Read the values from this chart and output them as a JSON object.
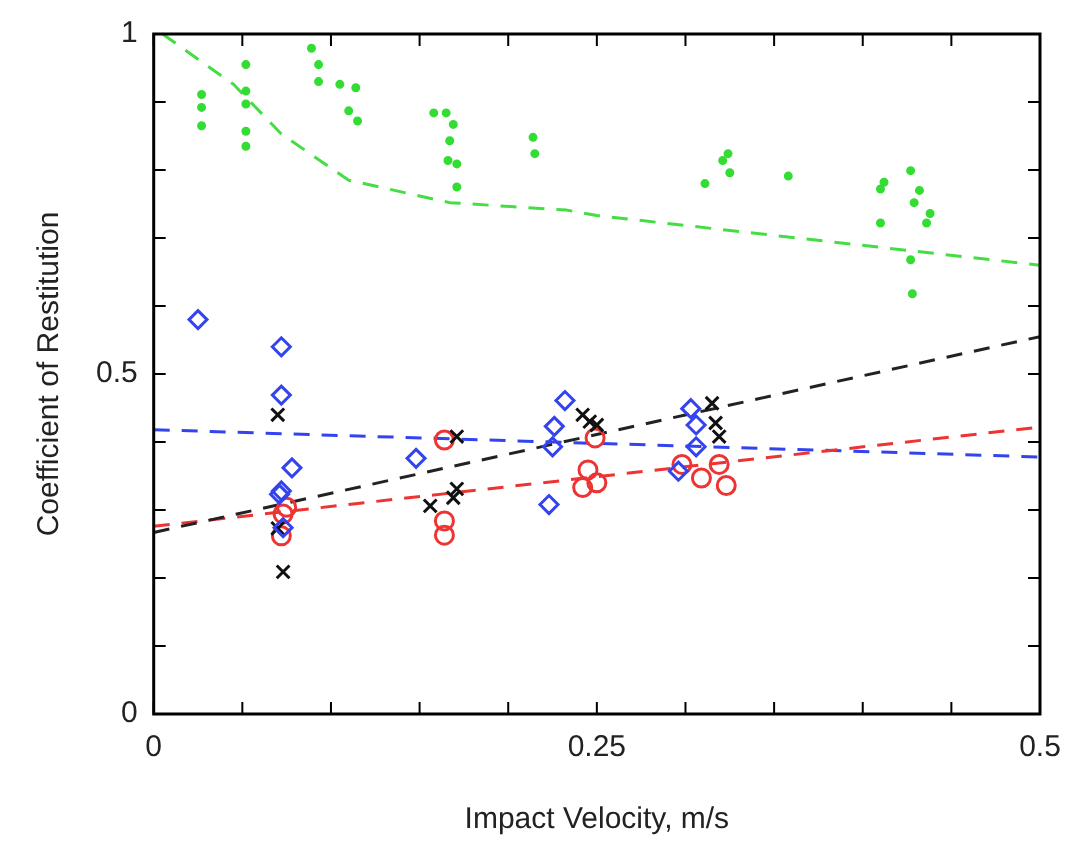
{
  "chart_data": {
    "type": "scatter",
    "xlabel": "Impact Velocity, m/s",
    "ylabel": "Coefficient of Restitution",
    "xlim": [
      0,
      0.5
    ],
    "ylim": [
      0,
      1
    ],
    "xticks": [
      0,
      {
        "value": 0.05,
        "label": null
      },
      {
        "value": 0.1,
        "label": null
      },
      {
        "value": 0.15,
        "label": null
      },
      {
        "value": 0.2,
        "label": null
      },
      0.25,
      {
        "value": 0.3,
        "label": null
      },
      {
        "value": 0.35,
        "label": null
      },
      {
        "value": 0.4,
        "label": null
      },
      {
        "value": 0.45,
        "label": null
      },
      0.5
    ],
    "yticks": [
      0,
      {
        "value": 0.1,
        "label": null
      },
      {
        "value": 0.2,
        "label": null
      },
      {
        "value": 0.3,
        "label": null
      },
      {
        "value": 0.4,
        "label": null
      },
      0.5,
      {
        "value": 0.6,
        "label": null
      },
      {
        "value": 0.7,
        "label": null
      },
      {
        "value": 0.8,
        "label": null
      },
      {
        "value": 0.9,
        "label": null
      },
      1
    ],
    "grid": false,
    "legend": false,
    "series": [
      {
        "type": "scatter",
        "marker": "circle",
        "color": "#33dd33",
        "x": [
          0.027,
          0.027,
          0.027,
          0.052,
          0.052,
          0.052,
          0.052,
          0.052,
          0.089,
          0.093,
          0.093,
          0.105,
          0.114,
          0.11,
          0.115,
          0.158,
          0.165,
          0.169,
          0.167,
          0.166,
          0.171,
          0.171,
          0.214,
          0.215,
          0.311,
          0.321,
          0.324,
          0.325,
          0.358,
          0.41,
          0.412,
          0.41,
          0.427,
          0.432,
          0.429,
          0.438,
          0.436,
          0.427,
          0.428
        ],
        "values": [
          0.911,
          0.892,
          0.865,
          0.955,
          0.916,
          0.897,
          0.857,
          0.835,
          0.979,
          0.955,
          0.93,
          0.926,
          0.921,
          0.887,
          0.872,
          0.884,
          0.884,
          0.867,
          0.843,
          0.814,
          0.809,
          0.775,
          0.848,
          0.824,
          0.78,
          0.814,
          0.824,
          0.796,
          0.791,
          0.772,
          0.782,
          0.722,
          0.799,
          0.77,
          0.752,
          0.736,
          0.722,
          0.668,
          0.618
        ]
      },
      {
        "type": "scatter",
        "marker": "diamond",
        "color": "#3344ee",
        "x": [
          0.025,
          0.072,
          0.072,
          0.078,
          0.072,
          0.071,
          0.073,
          0.148,
          0.226,
          0.232,
          0.225,
          0.223,
          0.303,
          0.306,
          0.306,
          0.296
        ],
        "values": [
          0.58,
          0.54,
          0.469,
          0.362,
          0.328,
          0.323,
          0.274,
          0.376,
          0.423,
          0.461,
          0.393,
          0.308,
          0.449,
          0.425,
          0.393,
          0.357
        ]
      },
      {
        "type": "scatter",
        "marker": "cross",
        "color": "#111111",
        "x": [
          0.07,
          0.073,
          0.07,
          0.156,
          0.169,
          0.171,
          0.171,
          0.242,
          0.246,
          0.25,
          0.315,
          0.317,
          0.319
        ],
        "values": [
          0.44,
          0.209,
          0.273,
          0.306,
          0.318,
          0.331,
          0.408,
          0.44,
          0.43,
          0.425,
          0.457,
          0.428,
          0.408
        ]
      },
      {
        "type": "scatter",
        "marker": "circle",
        "color": "#ee3333",
        "x": [
          0.072,
          0.073,
          0.075,
          0.164,
          0.164,
          0.164,
          0.249,
          0.245,
          0.242,
          0.25,
          0.298,
          0.309,
          0.319,
          0.323
        ],
        "values": [
          0.262,
          0.294,
          0.304,
          0.403,
          0.284,
          0.263,
          0.406,
          0.359,
          0.333,
          0.34,
          0.367,
          0.347,
          0.367,
          0.336
        ]
      },
      {
        "type": "line",
        "marker": "none",
        "line_style": "dashed",
        "color": "#44dd44",
        "x": [
          0.005,
          0.045,
          0.072,
          0.11,
          0.167,
          0.233,
          0.25,
          0.5
        ],
        "values": [
          1.0,
          0.926,
          0.853,
          0.785,
          0.752,
          0.741,
          0.733,
          0.66
        ]
      },
      {
        "type": "line",
        "marker": "none",
        "line_style": "dashed",
        "color": "#222222",
        "x": [
          0,
          0.5
        ],
        "values": [
          0.267,
          0.555
        ]
      },
      {
        "type": "line",
        "marker": "none",
        "line_style": "dashed",
        "color": "#ee3333",
        "x": [
          0,
          0.5
        ],
        "values": [
          0.276,
          0.422
        ]
      },
      {
        "type": "line",
        "marker": "none",
        "line_style": "dashed",
        "color": "#3344ee",
        "x": [
          0,
          0.5
        ],
        "values": [
          0.418,
          0.378
        ]
      }
    ]
  }
}
